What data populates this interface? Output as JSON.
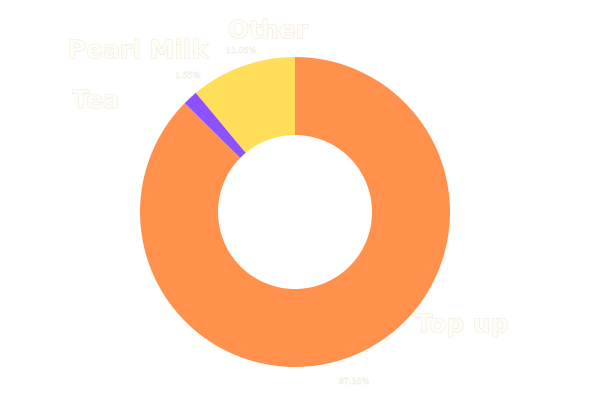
{
  "chart_data": {
    "type": "pie",
    "donut": true,
    "title": "",
    "categories": [
      "Top up",
      "Tea",
      "Pearl Milk",
      "Other"
    ],
    "values": [
      87.38,
      0.02,
      1.55,
      11.05
    ],
    "value_labels": [
      "87.38%",
      "0.02%",
      "1.55%",
      "11.05%"
    ],
    "colors": [
      "#ff914d",
      "#9aa8d8",
      "#8c52ff",
      "#ffde59"
    ],
    "legend": "none"
  }
}
